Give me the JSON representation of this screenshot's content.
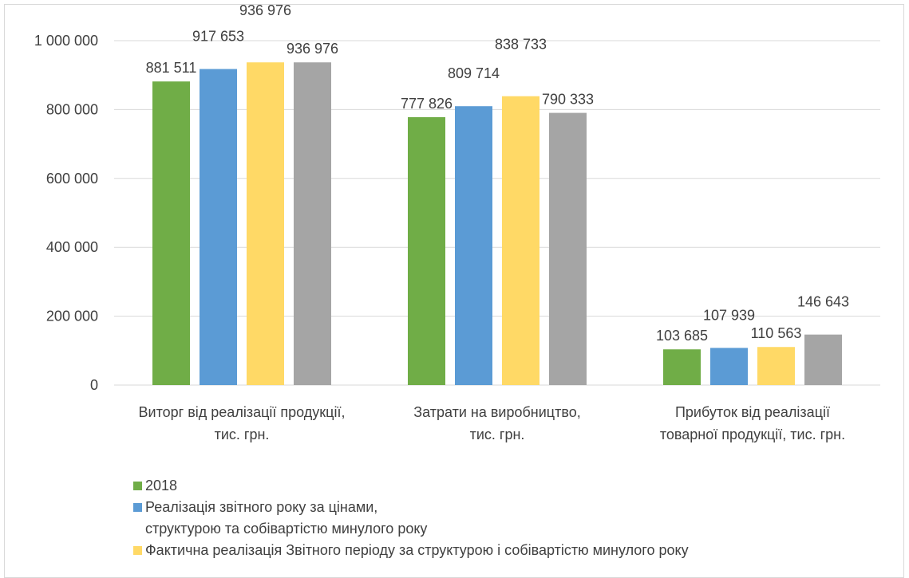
{
  "chart_data": {
    "type": "bar",
    "title": "",
    "xlabel": "",
    "ylabel": "",
    "ylim": [
      0,
      1000000
    ],
    "yticks": [
      0,
      200000,
      400000,
      600000,
      800000,
      1000000
    ],
    "ytick_labels": [
      "0",
      "200 000",
      "400 000",
      "600 000",
      "800 000",
      "1 000 000"
    ],
    "grid": true,
    "legend_position": "bottom",
    "categories": [
      "Виторг від реалізації продукції,\nтис. грн.",
      "Затрати на виробництво,\nтис. грн.",
      "Прибуток від реалізації\nтоварної продукції, тис. грн."
    ],
    "series": [
      {
        "name": "2018",
        "color": "#70ad47",
        "values": [
          881511,
          777826,
          103685
        ],
        "labels": [
          "881 511",
          "777 826",
          "103 685"
        ]
      },
      {
        "name": "Реалізація звітного року за цінами,\nструктурою та собівартістю минулого року",
        "color": "#5b9bd5",
        "values": [
          917653,
          809714,
          107939
        ],
        "labels": [
          "917 653",
          "809 714",
          "107 939"
        ]
      },
      {
        "name": "Фактична реалізація Звітного періоду за структурою і собівартістю минулого року",
        "color": "#ffd966",
        "values": [
          936976,
          838733,
          110563
        ],
        "labels": [
          "936 976",
          "838 733",
          "110 563"
        ]
      },
      {
        "color": "#a5a5a5",
        "values": [
          936976,
          790333,
          146643
        ],
        "labels": [
          "936 976",
          "790 333",
          "146 643"
        ]
      }
    ]
  }
}
